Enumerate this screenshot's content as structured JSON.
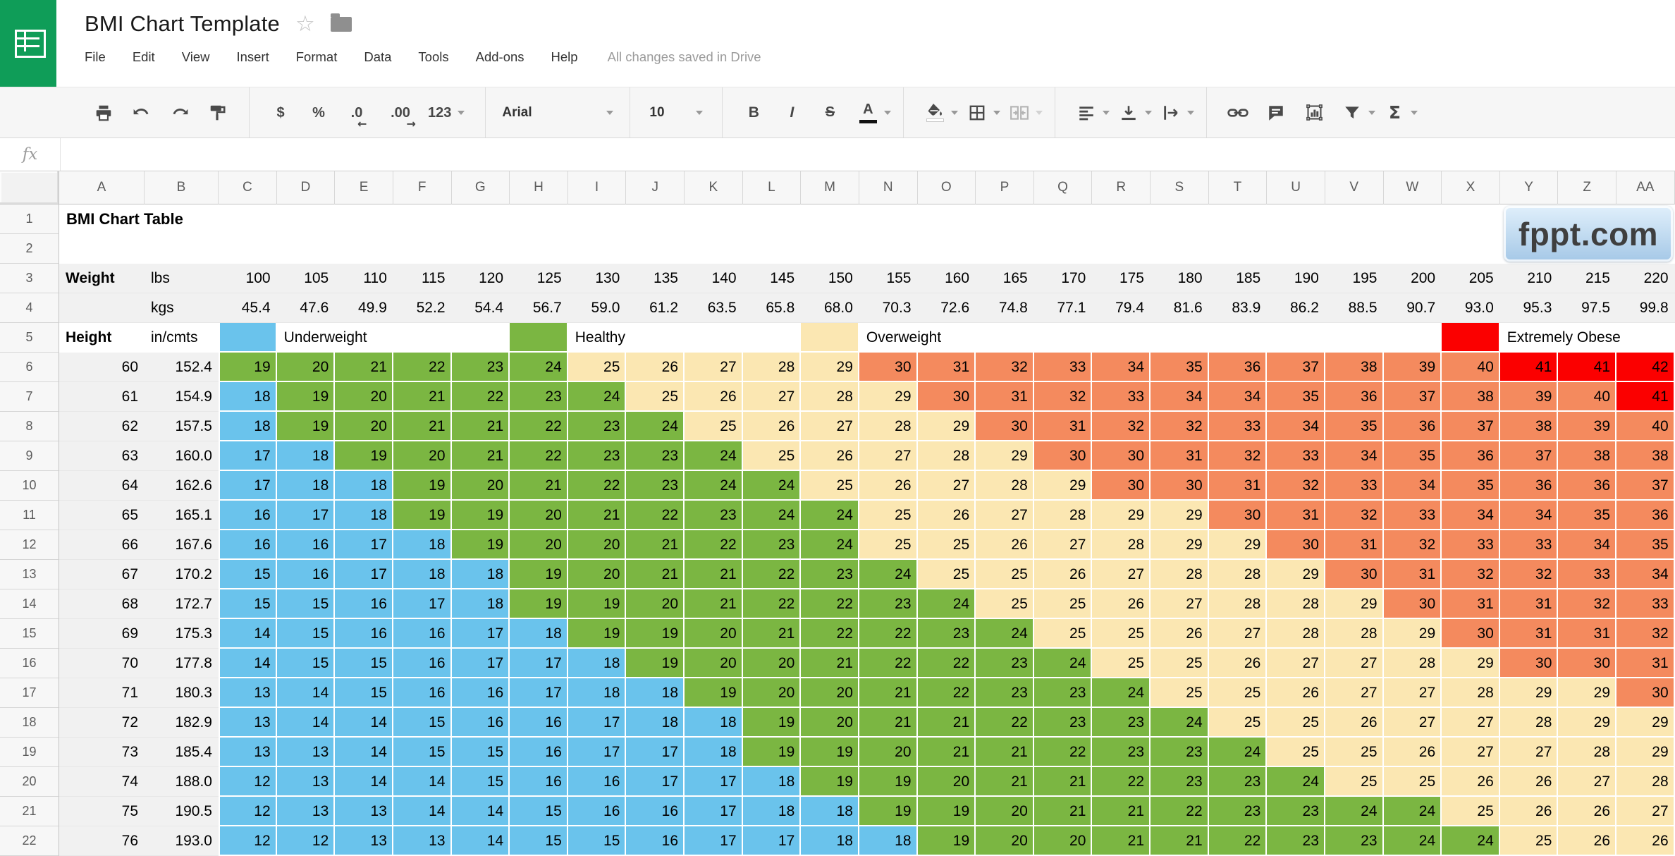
{
  "header": {
    "title": "BMI Chart Template",
    "menu": [
      "File",
      "Edit",
      "View",
      "Insert",
      "Format",
      "Data",
      "Tools",
      "Add-ons",
      "Help"
    ],
    "status": "All changes saved in Drive"
  },
  "toolbar": {
    "currency": "$",
    "percent": "%",
    "decimal_decrease": ".0",
    "decimal_decrease_arrow": "←",
    "decimal_increase": ".00",
    "decimal_increase_arrow": "→",
    "more_formats": "123",
    "font_name": "Arial",
    "font_size": "10",
    "bold": "B",
    "italic": "I",
    "strikethrough": "S",
    "text_color": "A",
    "functions": "Σ",
    "icons": [
      "print",
      "undo",
      "redo",
      "paint-format",
      "fill-color",
      "borders",
      "merge-cells",
      "horizontal-align",
      "vertical-align",
      "text-wrap",
      "insert-link",
      "insert-comment",
      "insert-chart",
      "filter",
      "functions"
    ]
  },
  "formula_bar": {
    "label": "fx",
    "value": ""
  },
  "watermark": {
    "text": "fppt.com"
  },
  "colors": {
    "logo_green": "#0f9d58",
    "underweight_blue": "#6ac3ec",
    "healthy_green": "#7bb642",
    "overweight_tan": "#fbe7b2",
    "obese_orange": "#f48a5e",
    "extreme_red": "#fb0000",
    "band_gray": "#f1f1f1"
  },
  "sheet": {
    "col_letters": [
      "A",
      "B",
      "C",
      "D",
      "E",
      "F",
      "G",
      "H",
      "I",
      "J",
      "K",
      "L",
      "M",
      "N",
      "O",
      "P",
      "Q",
      "R",
      "S",
      "T",
      "U",
      "V",
      "W",
      "X",
      "Y",
      "Z",
      "AA"
    ],
    "visible_rows": 22,
    "title_cell": "BMI Chart Table",
    "weight_label": "Weight",
    "lbs_label": "lbs",
    "kgs_label": "kgs",
    "height_label": "Height",
    "height_units_label": "in/cmts",
    "weights_lbs": [
      100,
      105,
      110,
      115,
      120,
      125,
      130,
      135,
      140,
      145,
      150,
      155,
      160,
      165,
      170,
      175,
      180,
      185,
      190,
      195,
      200,
      205,
      210,
      215,
      220
    ],
    "weights_kgs": [
      "45.4",
      "47.6",
      "49.9",
      "52.2",
      "54.4",
      "56.7",
      "59.0",
      "61.2",
      "63.5",
      "65.8",
      "68.0",
      "70.3",
      "72.6",
      "74.8",
      "77.1",
      "79.4",
      "81.6",
      "83.9",
      "86.2",
      "88.5",
      "90.7",
      "93.0",
      "95.3",
      "97.5",
      "99.8"
    ],
    "legend": [
      {
        "label": "Underweight",
        "color": "#6ac3ec",
        "swatch_col": 0,
        "label_col": 1
      },
      {
        "label": "Healthy",
        "color": "#7bb642",
        "swatch_col": 5,
        "label_col": 6
      },
      {
        "label": "Overweight",
        "color": "#fbe7b2",
        "swatch_col": 10,
        "label_col": 11
      },
      {
        "label": "Extremely Obese",
        "color": "#fb0000",
        "swatch_col": 21,
        "label_col": 22
      }
    ],
    "color_scale": [
      {
        "max": 18,
        "color": "#6ac3ec"
      },
      {
        "max": 24,
        "color": "#7bb642"
      },
      {
        "max": 29,
        "color": "#fbe7b2"
      },
      {
        "max": 40,
        "color": "#f48a5e"
      },
      {
        "max": 999,
        "color": "#fb0000"
      }
    ],
    "rows": [
      {
        "r": 6,
        "hin": "60",
        "hcm": "152.4",
        "bmi": [
          19,
          20,
          21,
          22,
          23,
          24,
          25,
          26,
          27,
          28,
          29,
          30,
          31,
          32,
          33,
          34,
          35,
          36,
          37,
          38,
          39,
          40,
          41,
          41,
          42
        ]
      },
      {
        "r": 7,
        "hin": "61",
        "hcm": "154.9",
        "bmi": [
          18,
          19,
          20,
          21,
          22,
          23,
          24,
          25,
          26,
          27,
          28,
          29,
          30,
          31,
          32,
          33,
          34,
          34,
          35,
          36,
          37,
          38,
          39,
          40,
          41
        ]
      },
      {
        "r": 8,
        "hin": "62",
        "hcm": "157.5",
        "bmi": [
          18,
          19,
          20,
          21,
          21,
          22,
          23,
          24,
          25,
          26,
          27,
          28,
          29,
          30,
          31,
          32,
          32,
          33,
          34,
          35,
          36,
          37,
          38,
          39,
          40
        ]
      },
      {
        "r": 9,
        "hin": "63",
        "hcm": "160.0",
        "bmi": [
          17,
          18,
          19,
          20,
          21,
          22,
          23,
          23,
          24,
          25,
          26,
          27,
          28,
          29,
          30,
          30,
          31,
          32,
          33,
          34,
          35,
          36,
          37,
          38,
          38
        ]
      },
      {
        "r": 10,
        "hin": "64",
        "hcm": "162.6",
        "bmi": [
          17,
          18,
          18,
          19,
          20,
          21,
          22,
          23,
          24,
          24,
          25,
          26,
          27,
          28,
          29,
          30,
          30,
          31,
          32,
          33,
          34,
          35,
          36,
          36,
          37
        ]
      },
      {
        "r": 11,
        "hin": "65",
        "hcm": "165.1",
        "bmi": [
          16,
          17,
          18,
          19,
          19,
          20,
          21,
          22,
          23,
          24,
          24,
          25,
          26,
          27,
          28,
          29,
          29,
          30,
          31,
          32,
          33,
          34,
          34,
          35,
          36
        ]
      },
      {
        "r": 12,
        "hin": "66",
        "hcm": "167.6",
        "bmi": [
          16,
          16,
          17,
          18,
          19,
          20,
          20,
          21,
          22,
          23,
          24,
          25,
          25,
          26,
          27,
          28,
          29,
          29,
          30,
          31,
          32,
          33,
          33,
          34,
          35
        ]
      },
      {
        "r": 13,
        "hin": "67",
        "hcm": "170.2",
        "bmi": [
          15,
          16,
          17,
          18,
          18,
          19,
          20,
          21,
          21,
          22,
          23,
          24,
          25,
          25,
          26,
          27,
          28,
          28,
          29,
          30,
          31,
          32,
          32,
          33,
          34
        ]
      },
      {
        "r": 14,
        "hin": "68",
        "hcm": "172.7",
        "bmi": [
          15,
          15,
          16,
          17,
          18,
          19,
          19,
          20,
          21,
          22,
          22,
          23,
          24,
          25,
          25,
          26,
          27,
          28,
          28,
          29,
          30,
          31,
          31,
          32,
          33
        ]
      },
      {
        "r": 15,
        "hin": "69",
        "hcm": "175.3",
        "bmi": [
          14,
          15,
          16,
          16,
          17,
          18,
          19,
          19,
          20,
          21,
          22,
          22,
          23,
          24,
          25,
          25,
          26,
          27,
          28,
          28,
          29,
          30,
          31,
          31,
          32
        ]
      },
      {
        "r": 16,
        "hin": "70",
        "hcm": "177.8",
        "bmi": [
          14,
          15,
          15,
          16,
          17,
          17,
          18,
          19,
          20,
          20,
          21,
          22,
          22,
          23,
          24,
          25,
          25,
          26,
          27,
          27,
          28,
          29,
          30,
          30,
          31
        ]
      },
      {
        "r": 17,
        "hin": "71",
        "hcm": "180.3",
        "bmi": [
          13,
          14,
          15,
          16,
          16,
          17,
          18,
          18,
          19,
          20,
          20,
          21,
          22,
          23,
          23,
          24,
          25,
          25,
          26,
          27,
          27,
          28,
          29,
          29,
          30
        ]
      },
      {
        "r": 18,
        "hin": "72",
        "hcm": "182.9",
        "bmi": [
          13,
          14,
          14,
          15,
          16,
          16,
          17,
          18,
          18,
          19,
          20,
          21,
          21,
          22,
          23,
          23,
          24,
          25,
          25,
          26,
          27,
          27,
          28,
          29,
          29
        ]
      },
      {
        "r": 19,
        "hin": "73",
        "hcm": "185.4",
        "bmi": [
          13,
          13,
          14,
          15,
          15,
          16,
          17,
          17,
          18,
          19,
          19,
          20,
          21,
          21,
          22,
          23,
          23,
          24,
          25,
          25,
          26,
          27,
          27,
          28,
          29
        ]
      },
      {
        "r": 20,
        "hin": "74",
        "hcm": "188.0",
        "bmi": [
          12,
          13,
          14,
          14,
          15,
          16,
          16,
          17,
          17,
          18,
          19,
          19,
          20,
          21,
          21,
          22,
          23,
          23,
          24,
          25,
          25,
          26,
          26,
          27,
          28
        ]
      },
      {
        "r": 21,
        "hin": "75",
        "hcm": "190.5",
        "bmi": [
          12,
          13,
          13,
          14,
          14,
          15,
          16,
          16,
          17,
          18,
          18,
          19,
          19,
          20,
          21,
          21,
          22,
          23,
          23,
          24,
          24,
          25,
          26,
          26,
          27
        ]
      },
      {
        "r": 22,
        "hin": "76",
        "hcm": "193.0",
        "bmi": [
          12,
          12,
          13,
          13,
          14,
          15,
          15,
          16,
          17,
          17,
          18,
          18,
          19,
          20,
          20,
          21,
          21,
          22,
          23,
          23,
          24,
          24,
          25,
          26,
          26
        ]
      }
    ]
  }
}
